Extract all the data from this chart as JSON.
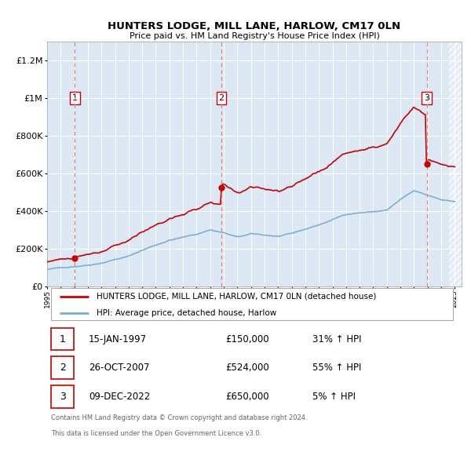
{
  "title": "HUNTERS LODGE, MILL LANE, HARLOW, CM17 0LN",
  "subtitle": "Price paid vs. HM Land Registry's House Price Index (HPI)",
  "footer1": "Contains HM Land Registry data © Crown copyright and database right 2024.",
  "footer2": "This data is licensed under the Open Government Licence v3.0.",
  "legend_label1": "HUNTERS LODGE, MILL LANE, HARLOW, CM17 0LN (detached house)",
  "legend_label2": "HPI: Average price, detached house, Harlow",
  "sales": [
    {
      "date": 1997.04,
      "price": 150000,
      "label": "1"
    },
    {
      "date": 2007.82,
      "price": 524000,
      "label": "2"
    },
    {
      "date": 2022.94,
      "price": 650000,
      "label": "3"
    }
  ],
  "sale_info": [
    {
      "num": "1",
      "date": "15-JAN-1997",
      "price": "£150,000",
      "hpi": "31% ↑ HPI"
    },
    {
      "num": "2",
      "date": "26-OCT-2007",
      "price": "£524,000",
      "hpi": "55% ↑ HPI"
    },
    {
      "num": "3",
      "date": "09-DEC-2022",
      "price": "£650,000",
      "hpi": "5% ↑ HPI"
    }
  ],
  "hpi_color": "#7bafd4",
  "price_color": "#cc0000",
  "dashed_color": "#e08080",
  "bg_color": "#dce9f5",
  "ylim": [
    0,
    1300000
  ],
  "yticks": [
    0,
    200000,
    400000,
    600000,
    800000,
    1000000,
    1200000
  ],
  "xlim": [
    1995,
    2025.5
  ]
}
